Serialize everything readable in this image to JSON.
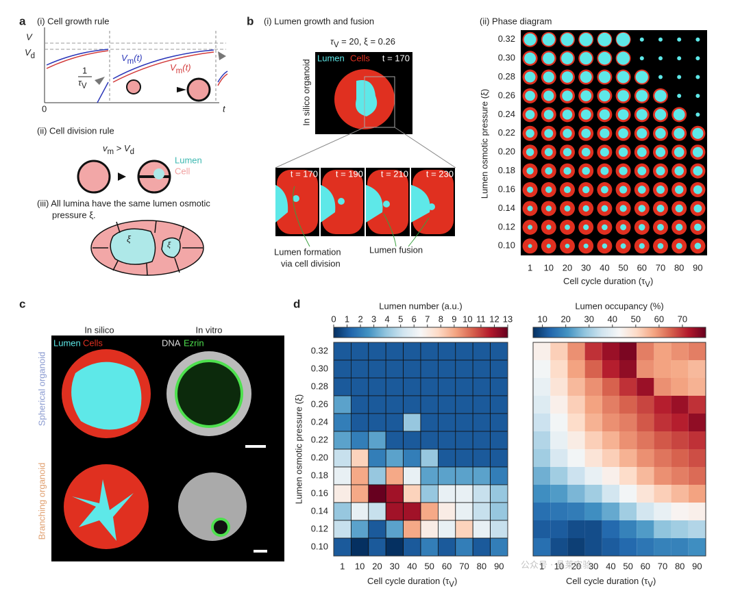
{
  "panel_a": {
    "label": "a",
    "growth_title": "(i) Cell growth rule",
    "V": "V",
    "Vd": [
      "V",
      "d"
    ],
    "vm_blue": [
      "V",
      "m",
      "(t)"
    ],
    "vm_red": [
      "V",
      "m",
      "(t)"
    ],
    "rate": [
      "1",
      "τ",
      "V"
    ],
    "origin": "0",
    "t": "t",
    "division_title": "(ii) Cell division rule",
    "condition": [
      "v",
      "m",
      " > ",
      "V",
      "d"
    ],
    "lumen": "Lumen",
    "cell": "Cell",
    "pressure_title": [
      "(iii) All lumina have the same lumen osmotic",
      "pressure ξ."
    ],
    "xi_large": "ξ",
    "xi_small": "ξ"
  },
  "panel_b": {
    "label": "b",
    "growth_title": "(i) Lumen growth and fusion",
    "params": [
      "τ",
      "V",
      " = 20, ξ = 0.26"
    ],
    "organoid_label": "In silico organoid",
    "legend_lumen": "Lumen",
    "legend_cells": "Cells",
    "time_main": "t = 170",
    "times": [
      "t = 170",
      "t = 190",
      "t = 210",
      "t = 230"
    ],
    "formation": [
      "Lumen formation",
      "via cell division"
    ],
    "fusion": "Lumen fusion",
    "phase_title": "(ii) Phase diagram",
    "phase_ylabel": "Lumen osmotic pressure (ξ)",
    "phase_xlabel": [
      "Cell cycle duration (τ",
      "V",
      ")"
    ],
    "phase_xcategories": [
      "1",
      "10",
      "20",
      "30",
      "40",
      "50",
      "60",
      "70",
      "80",
      "90"
    ],
    "phase_ycategories": [
      "0.32",
      "0.30",
      "0.28",
      "0.26",
      "0.24",
      "0.22",
      "0.20",
      "0.18",
      "0.16",
      "0.14",
      "0.12",
      "0.10"
    ]
  },
  "panel_c": {
    "label": "c",
    "in_silico": "In silico",
    "in_vitro": "In vitro",
    "lumen": "Lumen",
    "cells": "Cells",
    "dna": "DNA",
    "ezrin": "Ezrin",
    "spherical": "Spherical organoid",
    "branching": "Branching organoid"
  },
  "panel_d": {
    "label": "d",
    "ylabel": "Lumen osmotic pressure (ξ)"
  },
  "watermark": "公众号 · 晶莱实验",
  "chart_data": [
    {
      "type": "heatmap",
      "title": "Lumen number (a.u.)",
      "xlabel": [
        "Cell cycle duration (τ",
        "V",
        ")"
      ],
      "categories": [
        "1",
        "10",
        "20",
        "30",
        "40",
        "50",
        "60",
        "70",
        "80",
        "90"
      ],
      "y_categories": [
        "0.32",
        "0.30",
        "0.28",
        "0.26",
        "0.24",
        "0.22",
        "0.20",
        "0.18",
        "0.16",
        "0.14",
        "0.12",
        "0.10"
      ],
      "clim": [
        0,
        13
      ],
      "cticks": [
        0,
        1,
        2,
        3,
        4,
        5,
        6,
        7,
        8,
        9,
        10,
        11,
        12,
        13
      ],
      "colormap": "RdBu_r",
      "z": [
        [
          1,
          1,
          1,
          1,
          1,
          1,
          1,
          1,
          1,
          1
        ],
        [
          1,
          1,
          1,
          1,
          1,
          1,
          1,
          1,
          1,
          1
        ],
        [
          1,
          1,
          1,
          1,
          1,
          1,
          1,
          1,
          1,
          1
        ],
        [
          3,
          1,
          1,
          1,
          1,
          1,
          1,
          1,
          1,
          1
        ],
        [
          2,
          1,
          1,
          1,
          4,
          1,
          1,
          1,
          1,
          1
        ],
        [
          3,
          2,
          3,
          1,
          1,
          1,
          1,
          1,
          1,
          1
        ],
        [
          5,
          8,
          2,
          3,
          2,
          4,
          1,
          1,
          1,
          1
        ],
        [
          6,
          9,
          4,
          9,
          6,
          3,
          3,
          3,
          3,
          2
        ],
        [
          7,
          9,
          13,
          12,
          8,
          4,
          6,
          6,
          5,
          4
        ],
        [
          4,
          6,
          5,
          12,
          12,
          9,
          7,
          6,
          5,
          4
        ],
        [
          5,
          3,
          1,
          3,
          9,
          7,
          6,
          8,
          6,
          5
        ],
        [
          1,
          0,
          1,
          0,
          1,
          2,
          1,
          2,
          1,
          2
        ]
      ]
    },
    {
      "type": "heatmap",
      "title": "Lumen occupancy (%)",
      "xlabel": [
        "Cell cycle duration (τ",
        "V",
        ")"
      ],
      "categories": [
        "1",
        "10",
        "20",
        "30",
        "40",
        "50",
        "60",
        "70",
        "80",
        "90"
      ],
      "clim": [
        6,
        80
      ],
      "cticks": [
        10,
        20,
        30,
        40,
        50,
        60,
        70
      ],
      "colormap": "RdBu_r",
      "z": [
        [
          45,
          52,
          60,
          70,
          75,
          78,
          62,
          58,
          60,
          62
        ],
        [
          42,
          50,
          58,
          65,
          72,
          76,
          60,
          58,
          57,
          55
        ],
        [
          40,
          48,
          55,
          60,
          65,
          70,
          75,
          60,
          58,
          56
        ],
        [
          38,
          45,
          52,
          58,
          62,
          65,
          68,
          72,
          75,
          70
        ],
        [
          35,
          42,
          50,
          56,
          60,
          62,
          66,
          70,
          72,
          76
        ],
        [
          32,
          40,
          46,
          52,
          56,
          60,
          63,
          66,
          68,
          70
        ],
        [
          30,
          37,
          42,
          48,
          52,
          56,
          60,
          63,
          65,
          67
        ],
        [
          25,
          30,
          35,
          40,
          45,
          50,
          55,
          60,
          62,
          64
        ],
        [
          20,
          22,
          26,
          30,
          36,
          42,
          48,
          52,
          55,
          58
        ],
        [
          15,
          16,
          17,
          20,
          24,
          30,
          36,
          40,
          44,
          45
        ],
        [
          12,
          12,
          10,
          10,
          14,
          18,
          22,
          28,
          30,
          32
        ],
        [
          15,
          10,
          8,
          10,
          12,
          14,
          16,
          18,
          18,
          20
        ]
      ]
    }
  ]
}
